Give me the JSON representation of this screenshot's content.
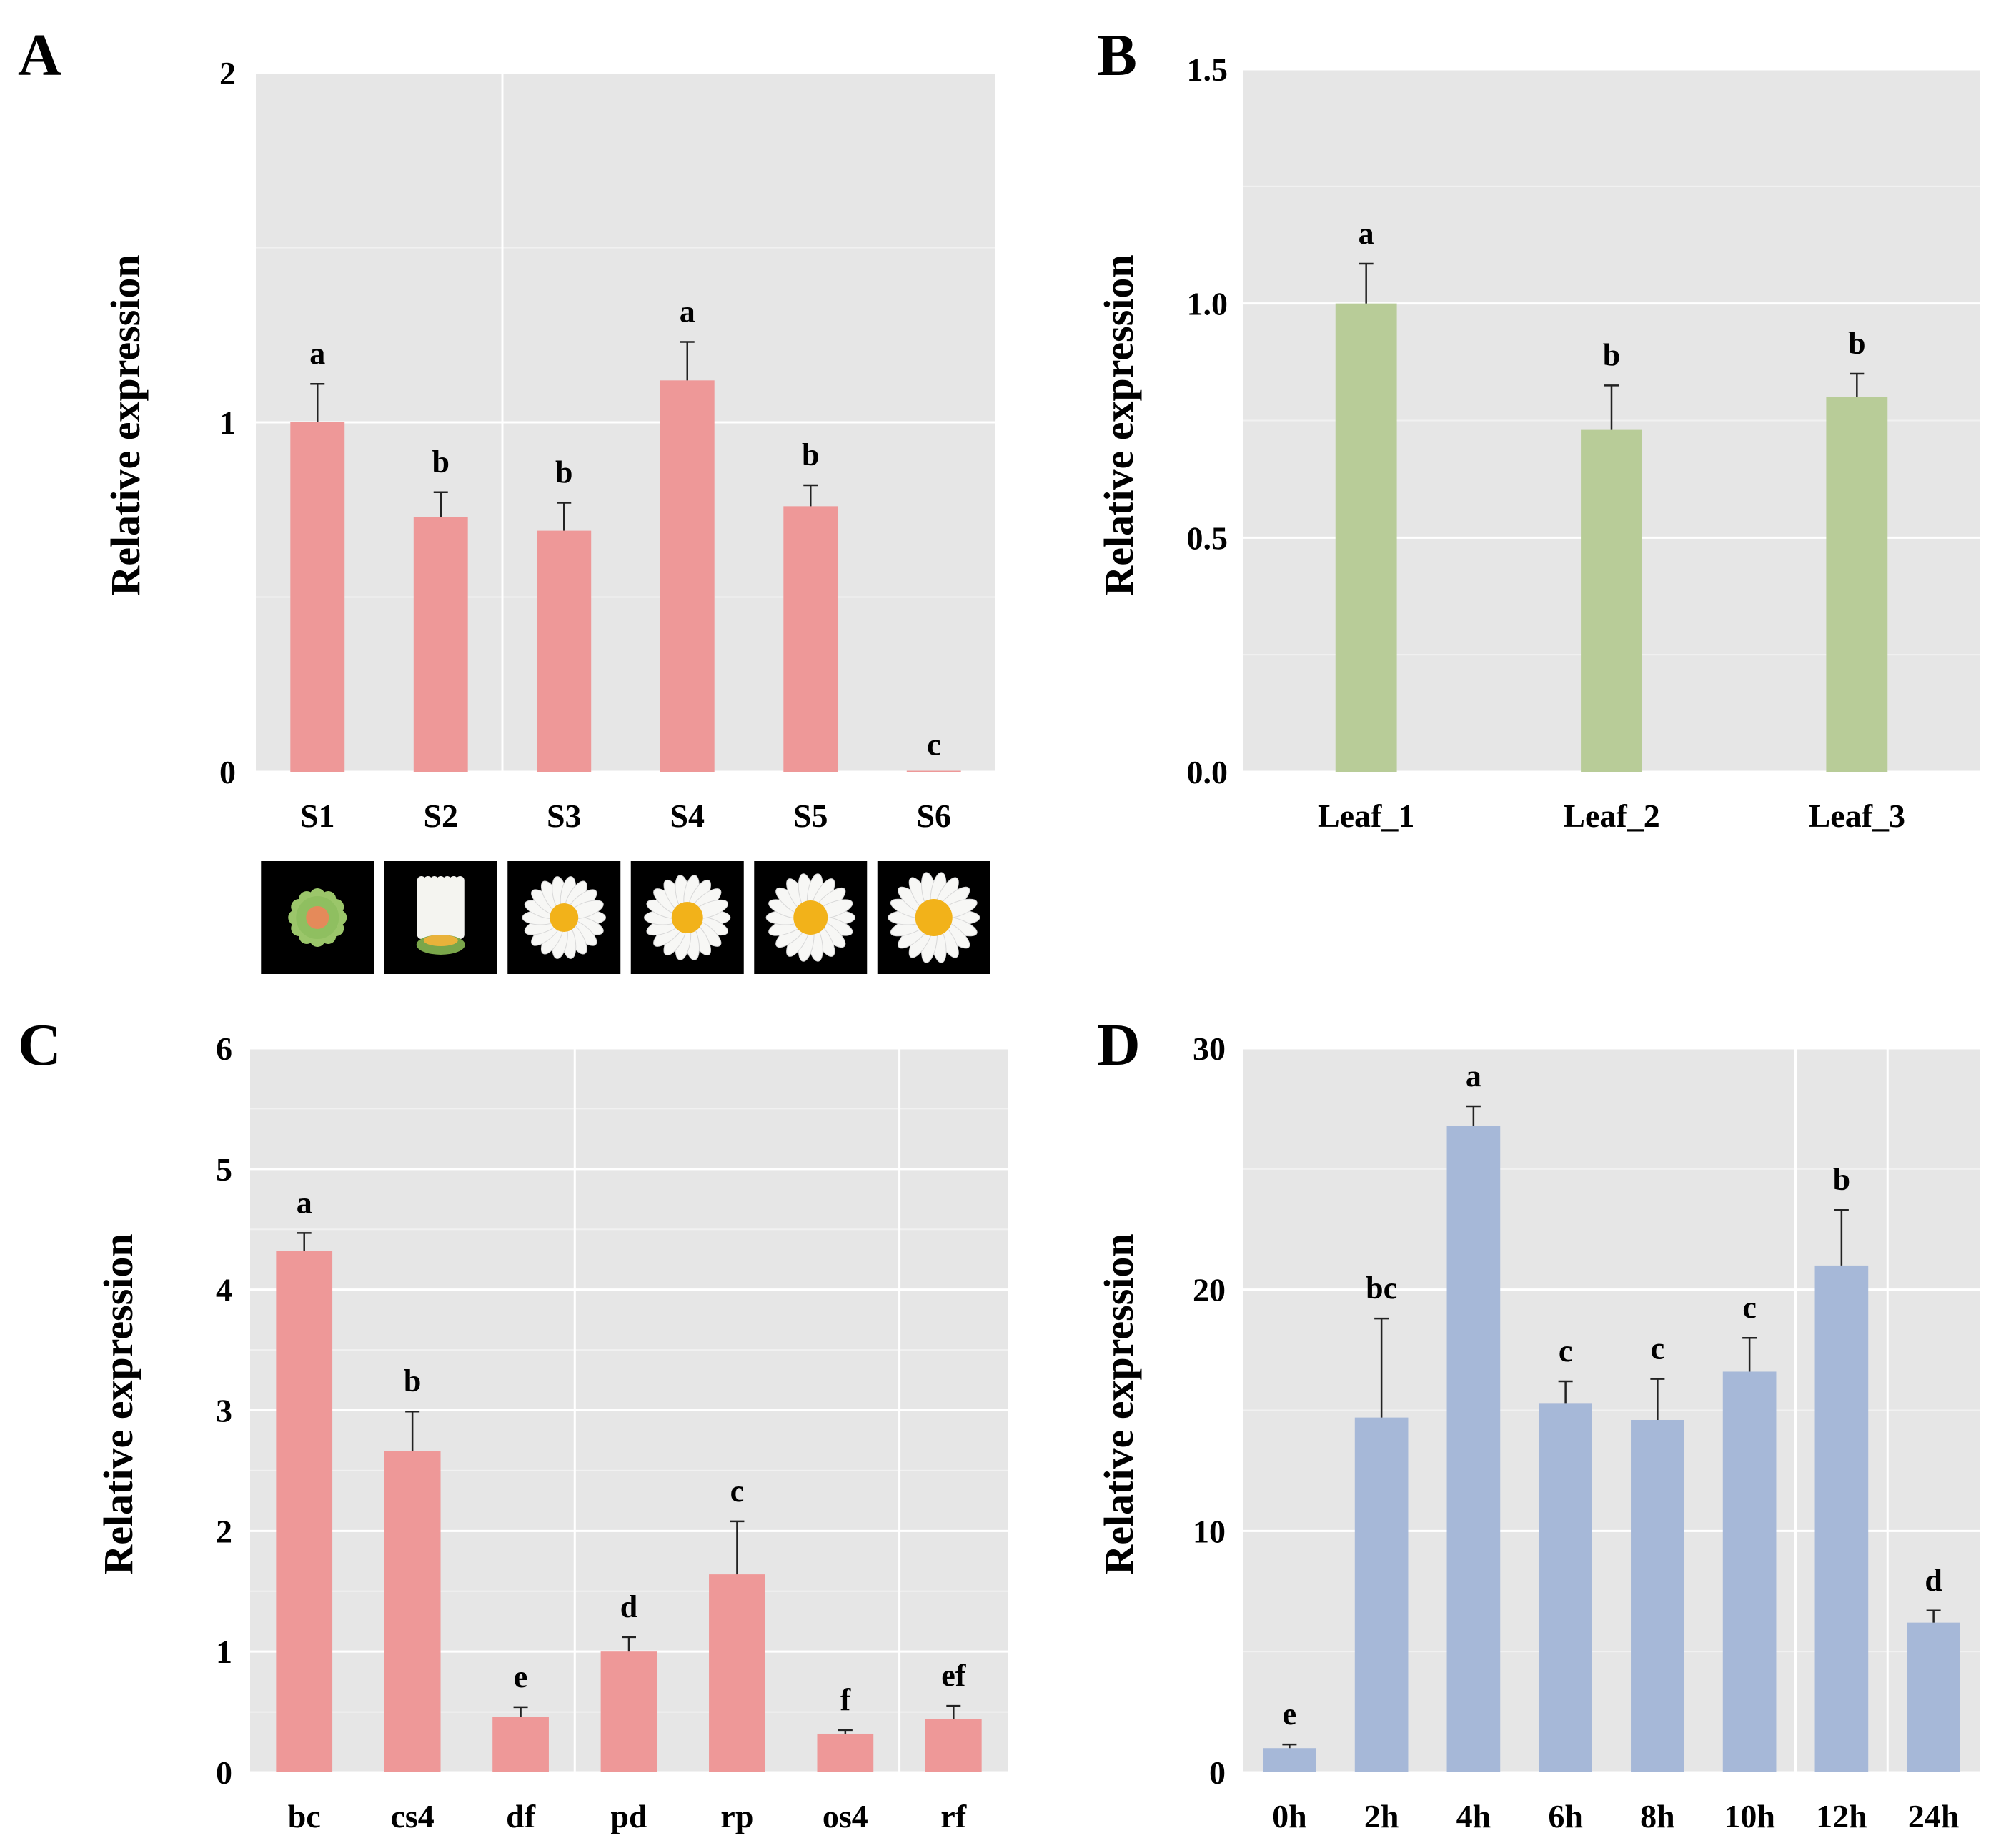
{
  "figure": {
    "panels": [
      "A",
      "B",
      "C",
      "D"
    ]
  },
  "chart_data": [
    {
      "panel": "A",
      "type": "bar",
      "ylabel": "Relative expression",
      "xlabel": "",
      "ylim": [
        0,
        2
      ],
      "yticks": [
        "0",
        "1",
        "2"
      ],
      "categories": [
        "S1",
        "S2",
        "S3",
        "S4",
        "S5",
        "S6"
      ],
      "values": [
        1.0,
        0.73,
        0.69,
        1.12,
        0.76,
        0.003
      ],
      "errors": [
        0.11,
        0.07,
        0.08,
        0.11,
        0.06,
        0.0
      ],
      "significance": [
        "a",
        "b",
        "b",
        "a",
        "b",
        "c"
      ],
      "color": "#ee9898",
      "grid": true,
      "flower_images": [
        "flower-bud-photo",
        "opening-bud-photo",
        "flower-photo",
        "flower-photo",
        "flower-photo",
        "flower-photo"
      ]
    },
    {
      "panel": "B",
      "type": "bar",
      "ylabel": "Relative expression",
      "xlabel": "",
      "ylim": [
        0,
        1.5
      ],
      "yticks": [
        "0.0",
        "0.5",
        "1.0",
        "1.5"
      ],
      "categories": [
        "Leaf_1",
        "Leaf_2",
        "Leaf_3"
      ],
      "values": [
        1.0,
        0.73,
        0.8
      ],
      "errors": [
        0.085,
        0.095,
        0.05
      ],
      "significance": [
        "a",
        "b",
        "b"
      ],
      "color": "#b8cc98",
      "grid": true
    },
    {
      "panel": "C",
      "type": "bar",
      "ylabel": "Relative expression",
      "xlabel": "",
      "ylim": [
        0,
        6
      ],
      "yticks": [
        "0",
        "1",
        "2",
        "3",
        "4",
        "5",
        "6"
      ],
      "categories": [
        "bc",
        "cs4",
        "df",
        "pd",
        "rp",
        "os4",
        "rf"
      ],
      "values": [
        4.32,
        2.66,
        0.46,
        1.0,
        1.64,
        0.32,
        0.44
      ],
      "errors": [
        0.15,
        0.33,
        0.08,
        0.12,
        0.44,
        0.03,
        0.11
      ],
      "significance": [
        "a",
        "b",
        "e",
        "d",
        "c",
        "f",
        "ef"
      ],
      "color": "#ee9898",
      "grid": true
    },
    {
      "panel": "D",
      "type": "bar",
      "ylabel": "Relative expression",
      "xlabel": "",
      "ylim": [
        0,
        30
      ],
      "yticks": [
        "0",
        "10",
        "20",
        "30"
      ],
      "categories": [
        "0h",
        "2h",
        "4h",
        "6h",
        "8h",
        "10h",
        "12h",
        "24h"
      ],
      "values": [
        1.0,
        14.7,
        26.8,
        15.3,
        14.6,
        16.6,
        21.0,
        6.2
      ],
      "errors": [
        0.15,
        4.1,
        0.8,
        0.9,
        1.7,
        1.4,
        2.3,
        0.5
      ],
      "significance": [
        "e",
        "bc",
        "a",
        "c",
        "c",
        "c",
        "b",
        "d"
      ],
      "color": "#a6b8d8",
      "grid": true
    }
  ]
}
